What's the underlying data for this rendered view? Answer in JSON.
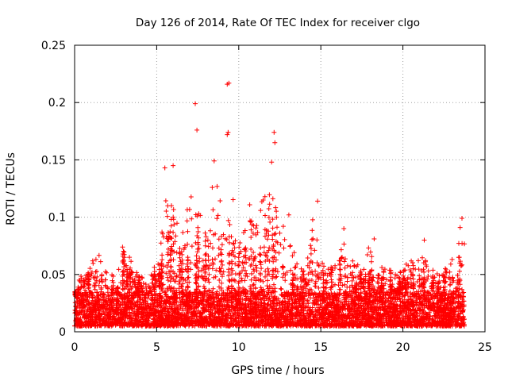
{
  "chart_data": {
    "type": "scatter",
    "title": "Day 126 of 2014, Rate Of TEC Index for receiver clgo",
    "xlabel": "GPS time / hours",
    "ylabel": "ROTI / TECUs",
    "xlim": [
      0,
      25
    ],
    "ylim": [
      0,
      0.25
    ],
    "x_ticks": [
      0,
      5,
      10,
      15,
      20,
      25
    ],
    "x_tick_labels": [
      "0",
      "5",
      "10",
      "15",
      "20",
      "25"
    ],
    "y_ticks": [
      0,
      0.05,
      0.1,
      0.15,
      0.2,
      0.25
    ],
    "y_tick_labels": [
      "0",
      "0.05",
      "0.1",
      "0.15",
      "0.2",
      "0.25"
    ],
    "grid": true,
    "marker": "+",
    "series": [
      {
        "name": "ROTI",
        "color": "#ff0000",
        "x_range_hours": [
          0,
          23.75
        ],
        "baseline_band": [
          0.005,
          0.035
        ],
        "envelope": [
          {
            "x": 0.0,
            "y": 0.045
          },
          {
            "x": 0.5,
            "y": 0.047
          },
          {
            "x": 1.0,
            "y": 0.06
          },
          {
            "x": 1.5,
            "y": 0.07
          },
          {
            "x": 2.0,
            "y": 0.05
          },
          {
            "x": 2.5,
            "y": 0.055
          },
          {
            "x": 3.0,
            "y": 0.08
          },
          {
            "x": 3.5,
            "y": 0.06
          },
          {
            "x": 4.0,
            "y": 0.05
          },
          {
            "x": 4.5,
            "y": 0.045
          },
          {
            "x": 5.0,
            "y": 0.06
          },
          {
            "x": 5.5,
            "y": 0.13
          },
          {
            "x": 6.0,
            "y": 0.14
          },
          {
            "x": 6.5,
            "y": 0.08
          },
          {
            "x": 7.0,
            "y": 0.13
          },
          {
            "x": 7.5,
            "y": 0.11
          },
          {
            "x": 8.0,
            "y": 0.09
          },
          {
            "x": 8.5,
            "y": 0.14
          },
          {
            "x": 9.0,
            "y": 0.11
          },
          {
            "x": 9.5,
            "y": 0.13
          },
          {
            "x": 10.0,
            "y": 0.09
          },
          {
            "x": 10.5,
            "y": 0.12
          },
          {
            "x": 11.0,
            "y": 0.1
          },
          {
            "x": 11.5,
            "y": 0.12
          },
          {
            "x": 12.0,
            "y": 0.14
          },
          {
            "x": 12.5,
            "y": 0.09
          },
          {
            "x": 13.0,
            "y": 0.1
          },
          {
            "x": 13.5,
            "y": 0.06
          },
          {
            "x": 14.0,
            "y": 0.055
          },
          {
            "x": 14.5,
            "y": 0.1
          },
          {
            "x": 15.0,
            "y": 0.07
          },
          {
            "x": 15.5,
            "y": 0.06
          },
          {
            "x": 16.0,
            "y": 0.07
          },
          {
            "x": 16.5,
            "y": 0.085
          },
          {
            "x": 17.0,
            "y": 0.06
          },
          {
            "x": 17.5,
            "y": 0.06
          },
          {
            "x": 18.0,
            "y": 0.08
          },
          {
            "x": 18.5,
            "y": 0.055
          },
          {
            "x": 19.0,
            "y": 0.06
          },
          {
            "x": 19.5,
            "y": 0.05
          },
          {
            "x": 20.0,
            "y": 0.055
          },
          {
            "x": 20.5,
            "y": 0.065
          },
          {
            "x": 21.0,
            "y": 0.065
          },
          {
            "x": 21.5,
            "y": 0.065
          },
          {
            "x": 22.0,
            "y": 0.05
          },
          {
            "x": 22.5,
            "y": 0.055
          },
          {
            "x": 23.0,
            "y": 0.065
          },
          {
            "x": 23.5,
            "y": 0.095
          },
          {
            "x": 23.75,
            "y": 0.098
          }
        ],
        "notable_points": [
          {
            "x": 7.35,
            "y": 0.199
          },
          {
            "x": 7.45,
            "y": 0.176
          },
          {
            "x": 9.3,
            "y": 0.216
          },
          {
            "x": 9.4,
            "y": 0.217
          },
          {
            "x": 9.3,
            "y": 0.172
          },
          {
            "x": 9.35,
            "y": 0.174
          },
          {
            "x": 12.15,
            "y": 0.174
          },
          {
            "x": 12.2,
            "y": 0.165
          },
          {
            "x": 8.5,
            "y": 0.149
          },
          {
            "x": 12.0,
            "y": 0.148
          },
          {
            "x": 6.0,
            "y": 0.145
          },
          {
            "x": 5.5,
            "y": 0.143
          },
          {
            "x": 14.8,
            "y": 0.114
          },
          {
            "x": 23.6,
            "y": 0.099
          },
          {
            "x": 18.25,
            "y": 0.081
          },
          {
            "x": 21.3,
            "y": 0.08
          },
          {
            "x": 16.4,
            "y": 0.09
          },
          {
            "x": 13.05,
            "y": 0.102
          }
        ]
      }
    ]
  }
}
